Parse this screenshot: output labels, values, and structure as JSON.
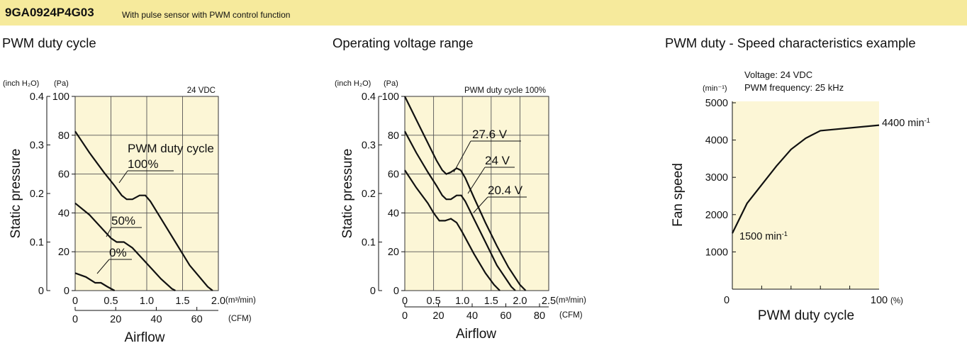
{
  "header": {
    "model": "9GA0924P4G03",
    "description": "With pulse sensor with PWM control function"
  },
  "colors": {
    "header_bg": "#f6ea9c",
    "plot_bg": "#fcf6d6",
    "grid": "#555555",
    "curve": "#111111"
  },
  "chart_data": [
    {
      "type": "line",
      "title": "PWM duty cycle",
      "condition": "24 VDC",
      "xlabel": "Airflow",
      "ylabel": "Static pressure",
      "x_unit": "(m³/min)",
      "x2_unit": "(CFM)",
      "y_unit": "(Pa)",
      "y2_unit": "(inch H₂O)",
      "xlim": [
        0,
        2.0
      ],
      "ylim": [
        0,
        100
      ],
      "x_ticks": [
        "0",
        "0.5",
        "1.0",
        "1.5",
        "2.0"
      ],
      "y_ticks": [
        "0",
        "20",
        "40",
        "60",
        "80",
        "100"
      ],
      "x2_ticks": [
        "0",
        "20",
        "40",
        "60"
      ],
      "y2_ticks": [
        "0",
        "0.1",
        "0.2",
        "0.3",
        "0.4"
      ],
      "legend_title": "PWM duty cycle",
      "grid": true,
      "series": [
        {
          "name": "100%",
          "points": [
            [
              0,
              82
            ],
            [
              0.2,
              71
            ],
            [
              0.4,
              61
            ],
            [
              0.55,
              54
            ],
            [
              0.65,
              49
            ],
            [
              0.72,
              47
            ],
            [
              0.8,
              47
            ],
            [
              0.9,
              49
            ],
            [
              0.98,
              49
            ],
            [
              1.05,
              46
            ],
            [
              1.2,
              37
            ],
            [
              1.4,
              25
            ],
            [
              1.6,
              13
            ],
            [
              1.85,
              2
            ],
            [
              1.92,
              0
            ]
          ]
        },
        {
          "name": "50%",
          "points": [
            [
              0,
              45
            ],
            [
              0.2,
              39
            ],
            [
              0.4,
              31
            ],
            [
              0.5,
              27
            ],
            [
              0.58,
              25
            ],
            [
              0.68,
              25
            ],
            [
              0.8,
              22
            ],
            [
              1.0,
              14
            ],
            [
              1.2,
              6
            ],
            [
              1.35,
              1
            ],
            [
              1.4,
              0
            ]
          ]
        },
        {
          "name": "0%",
          "points": [
            [
              0,
              9
            ],
            [
              0.15,
              7
            ],
            [
              0.28,
              4
            ],
            [
              0.36,
              4
            ],
            [
              0.45,
              2
            ],
            [
              0.55,
              0
            ]
          ]
        }
      ]
    },
    {
      "type": "line",
      "title": "Operating voltage range",
      "condition": "PWM duty cycle 100%",
      "xlabel": "Airflow",
      "ylabel": "Static pressure",
      "x_unit": "(m³/min)",
      "x2_unit": "(CFM)",
      "y_unit": "(Pa)",
      "y2_unit": "(inch H₂O)",
      "xlim": [
        0,
        2.5
      ],
      "ylim": [
        0,
        100
      ],
      "x_ticks": [
        "0",
        "0.5",
        "1.0",
        "1.5",
        "2.0",
        "2.5"
      ],
      "y_ticks": [
        "0",
        "20",
        "40",
        "60",
        "80",
        "100"
      ],
      "x2_ticks": [
        "0",
        "20",
        "40",
        "60",
        "80"
      ],
      "y2_ticks": [
        "0",
        "0.1",
        "0.2",
        "0.3",
        "0.4"
      ],
      "grid": true,
      "series": [
        {
          "name": "27.6 V",
          "points": [
            [
              0,
              100
            ],
            [
              0.2,
              88
            ],
            [
              0.4,
              76
            ],
            [
              0.55,
              67
            ],
            [
              0.65,
              62
            ],
            [
              0.72,
              60
            ],
            [
              0.8,
              61
            ],
            [
              0.9,
              63
            ],
            [
              0.97,
              62
            ],
            [
              1.05,
              58
            ],
            [
              1.2,
              48
            ],
            [
              1.4,
              35
            ],
            [
              1.6,
              23
            ],
            [
              1.8,
              12
            ],
            [
              2.0,
              3
            ],
            [
              2.1,
              0
            ]
          ]
        },
        {
          "name": "24 V",
          "points": [
            [
              0,
              82
            ],
            [
              0.2,
              71
            ],
            [
              0.4,
              61
            ],
            [
              0.55,
              54
            ],
            [
              0.65,
              49
            ],
            [
              0.72,
              47
            ],
            [
              0.8,
              47
            ],
            [
              0.9,
              49
            ],
            [
              0.98,
              49
            ],
            [
              1.05,
              46
            ],
            [
              1.2,
              37
            ],
            [
              1.4,
              25
            ],
            [
              1.6,
              13
            ],
            [
              1.85,
              2
            ],
            [
              1.92,
              0
            ]
          ]
        },
        {
          "name": "20.4 V",
          "points": [
            [
              0,
              62
            ],
            [
              0.2,
              53
            ],
            [
              0.4,
              45
            ],
            [
              0.5,
              40
            ],
            [
              0.6,
              36
            ],
            [
              0.7,
              36
            ],
            [
              0.8,
              37
            ],
            [
              0.9,
              35
            ],
            [
              1.0,
              30
            ],
            [
              1.2,
              19
            ],
            [
              1.4,
              9
            ],
            [
              1.55,
              3
            ],
            [
              1.65,
              0
            ]
          ]
        }
      ]
    },
    {
      "type": "line",
      "title": "PWM duty - Speed characteristics example",
      "condition_lines": [
        "Voltage: 24 VDC",
        "PWM frequency: 25 kHz"
      ],
      "xlabel": "PWM duty cycle",
      "ylabel": "Fan speed",
      "x_unit": "(%)",
      "y_unit": "(min⁻¹)",
      "xlim": [
        0,
        100
      ],
      "ylim": [
        0,
        5000
      ],
      "x_ticks": [
        "0",
        "100"
      ],
      "y_ticks": [
        "1000",
        "2000",
        "3000",
        "4000",
        "5000"
      ],
      "grid": false,
      "series": [
        {
          "name": "",
          "points": [
            [
              0,
              1500
            ],
            [
              10,
              2300
            ],
            [
              20,
              2800
            ],
            [
              30,
              3300
            ],
            [
              40,
              3750
            ],
            [
              50,
              4050
            ],
            [
              60,
              4250
            ],
            [
              100,
              4400
            ]
          ]
        }
      ],
      "annotations": [
        {
          "base": "4400 min",
          "sup": "-1"
        },
        {
          "base": "1500 min",
          "sup": "-1"
        }
      ]
    }
  ]
}
